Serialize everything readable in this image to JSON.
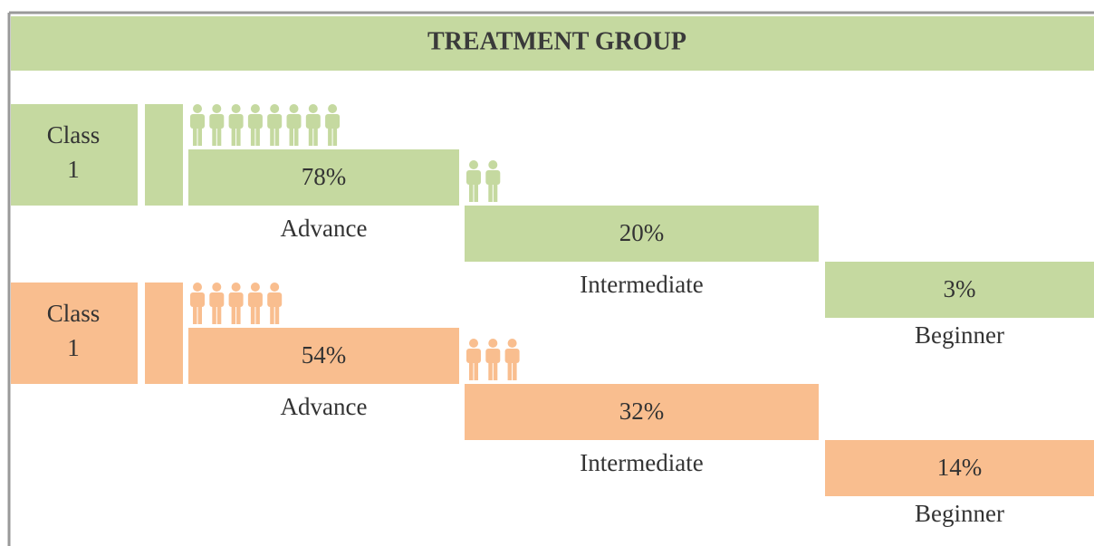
{
  "header": {
    "title": "TREATMENT GROUP"
  },
  "groups": [
    {
      "label": "Class 1",
      "color": "#c5d9a0",
      "levels": [
        {
          "percent": "78%",
          "name": "Advance",
          "icons": 8
        },
        {
          "percent": "20%",
          "name": "Intermediate",
          "icons": 2
        },
        {
          "percent": "3%",
          "name": "Beginner",
          "icons": 0
        }
      ]
    },
    {
      "label": "Class 1",
      "color": "#f9be8f",
      "levels": [
        {
          "percent": "54%",
          "name": "Advance",
          "icons": 5
        },
        {
          "percent": "32%",
          "name": "Intermediate",
          "icons": 3
        },
        {
          "percent": "14%",
          "name": "Beginner",
          "icons": 0
        }
      ]
    }
  ]
}
